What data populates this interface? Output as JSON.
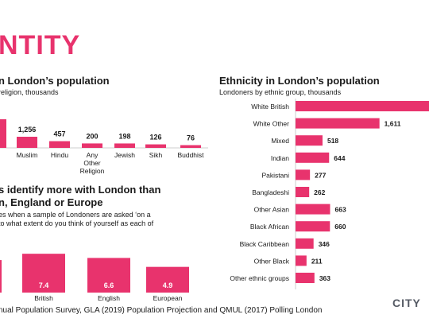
{
  "slide": {
    "title_fragment": "NTITY",
    "source_text": "nual Population Survey, GLA (2019) Population Projection and QMUL (2017) Polling London",
    "logo_text": "CITY",
    "accent_color": "#e8336d"
  },
  "chart_data": [
    {
      "id": "religion",
      "type": "bar",
      "title": "n London’s population",
      "subtitle": "religion, thousands",
      "categories": [
        "on",
        "Muslim",
        "Hindu",
        "Any Other Religion",
        "Jewish",
        "Sikh",
        "Buddhist"
      ],
      "category_lines": [
        [
          "on"
        ],
        [
          "Muslim"
        ],
        [
          "Hindu"
        ],
        [
          "Any",
          "Other",
          "Religion"
        ],
        [
          "Jewish"
        ],
        [
          "Sikh"
        ],
        [
          "Buddhist"
        ]
      ],
      "values": [
        null,
        1256,
        457,
        200,
        198,
        126,
        76
      ],
      "value_labels": [
        "5",
        "1,256",
        "457",
        "200",
        "198",
        "126",
        "76"
      ]
    },
    {
      "id": "identity",
      "type": "bar",
      "title_lines": [
        "s identify more with London than",
        "n, England or Europe"
      ],
      "note_lines": [
        "es when a sample of Londoners are asked ‘on a",
        "to what extent do you think of yourself as each of"
      ],
      "categories": [
        "British",
        "English",
        "European"
      ],
      "values": [
        7.4,
        6.6,
        4.9
      ],
      "value_labels": [
        "7.4",
        "6.6",
        "4.9"
      ],
      "ylim": [
        0,
        10
      ]
    },
    {
      "id": "ethnicity",
      "type": "bar",
      "orientation": "horizontal",
      "title": "Ethnicity in London’s population",
      "subtitle": "Londoners by ethnic group, thousands",
      "categories": [
        "White British",
        "White Other",
        "Mixed",
        "Indian",
        "Pakistani",
        "Bangladeshi",
        "Other Asian",
        "Black African",
        "Black Caribbean",
        "Other Black",
        "Other ethnic groups"
      ],
      "values": [
        null,
        1611,
        518,
        644,
        277,
        262,
        663,
        660,
        346,
        211,
        363
      ],
      "value_labels": [
        "",
        "1,611",
        "518",
        "644",
        "277",
        "262",
        "663",
        "660",
        "346",
        "211",
        "363"
      ]
    }
  ]
}
